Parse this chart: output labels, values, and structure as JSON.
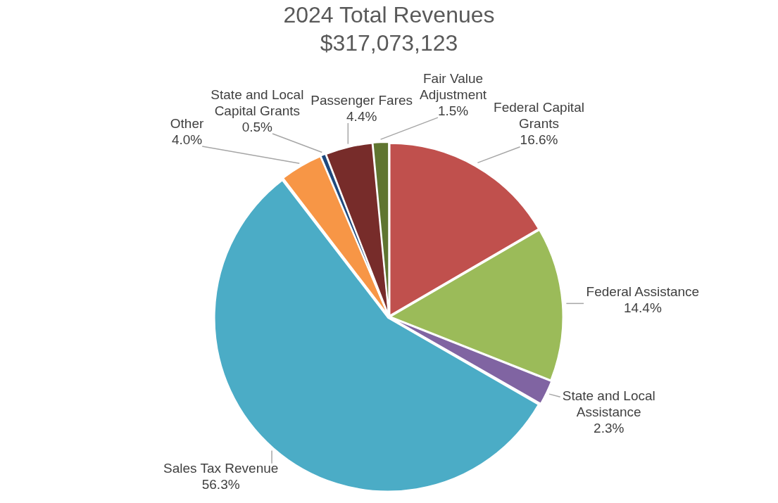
{
  "chart_data": {
    "type": "pie",
    "title": "2024 Total Revenues",
    "subtitle": "$317,073,123",
    "categories": [
      "Federal Capital Grants",
      "Federal Assistance",
      "State and Local Assistance",
      "Sales Tax Revenue",
      "Other",
      "State and Local Capital Grants",
      "Passenger Fares",
      "Fair Value Adjustment"
    ],
    "values": [
      16.6,
      14.4,
      2.3,
      56.3,
      4.0,
      0.5,
      4.4,
      1.5
    ],
    "colors": [
      "#c0504d",
      "#9bbb59",
      "#8064a2",
      "#4bacc6",
      "#f79646",
      "#1f497d",
      "#772c2a",
      "#5f7530"
    ],
    "data_labels": true,
    "value_labels": [
      "16.6%",
      "14.4%",
      "2.3%",
      "56.3%",
      "4.0%",
      "0.5%",
      "4.4%",
      "1.5%"
    ],
    "legend": false
  }
}
